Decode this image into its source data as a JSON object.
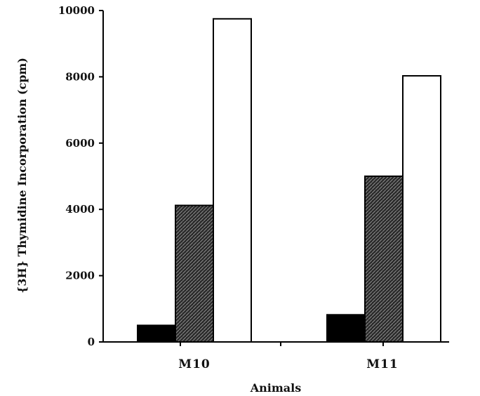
{
  "chart_data": {
    "type": "bar",
    "title": "",
    "xlabel": "Animals",
    "ylabel": "{3H} Thymidine  Incorporation  (cpm)",
    "categories": [
      "M10",
      "M11"
    ],
    "series": [
      {
        "values": [
          500,
          820
        ],
        "fill": "solid",
        "color": "#000000"
      },
      {
        "values": [
          4120,
          5000
        ],
        "fill": "hatched",
        "color": "#333333"
      },
      {
        "values": [
          9750,
          8030
        ],
        "fill": "open",
        "color": "#ffffff"
      }
    ],
    "ylim": [
      0,
      10000
    ],
    "yticks": [
      0,
      2000,
      4000,
      6000,
      8000,
      10000
    ],
    "grid": false,
    "legend": "none"
  }
}
